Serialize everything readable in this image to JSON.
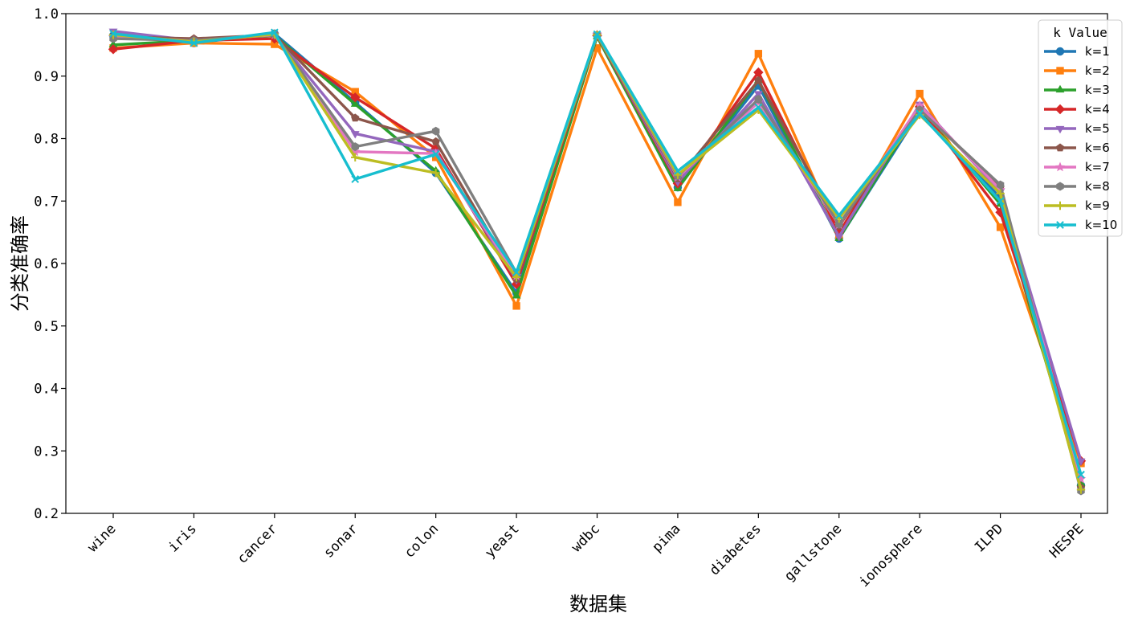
{
  "chart_data": {
    "type": "line",
    "title": "",
    "xlabel": "数据集",
    "ylabel": "分类准确率",
    "ylim": [
      0.2,
      1.0
    ],
    "yticks": [
      0.2,
      0.3,
      0.4,
      0.5,
      0.6,
      0.7,
      0.8,
      0.9,
      1.0
    ],
    "ytick_labels": [
      "0.2",
      "0.3",
      "0.4",
      "0.5",
      "0.6",
      "0.7",
      "0.8",
      "0.9",
      "1.0"
    ],
    "categories": [
      "wine",
      "iris",
      "cancer",
      "sonar",
      "colon",
      "yeast",
      "wdbc",
      "pima",
      "diabetes",
      "gallstone",
      "ionosphere",
      "ILPD",
      "HESPE"
    ],
    "grid": false,
    "legend": {
      "title": "k Value",
      "placement": "top-right"
    },
    "series": [
      {
        "name": "k=1",
        "color": "#1f77b4",
        "marker": "circle",
        "values": [
          0.965,
          0.953,
          0.968,
          0.858,
          0.745,
          0.553,
          0.965,
          0.722,
          0.885,
          0.64,
          0.843,
          0.705,
          0.245
        ]
      },
      {
        "name": "k=2",
        "color": "#ff7f0e",
        "marker": "square",
        "values": [
          0.945,
          0.953,
          0.951,
          0.875,
          0.77,
          0.532,
          0.945,
          0.698,
          0.936,
          0.645,
          0.872,
          0.658,
          0.28
        ]
      },
      {
        "name": "k=3",
        "color": "#2ca02c",
        "marker": "triangle-up",
        "values": [
          0.95,
          0.957,
          0.965,
          0.855,
          0.748,
          0.548,
          0.963,
          0.72,
          0.893,
          0.64,
          0.848,
          0.695,
          0.248
        ]
      },
      {
        "name": "k=4",
        "color": "#d62728",
        "marker": "diamond",
        "values": [
          0.943,
          0.957,
          0.96,
          0.866,
          0.784,
          0.567,
          0.965,
          0.728,
          0.906,
          0.65,
          0.851,
          0.682,
          0.284
        ]
      },
      {
        "name": "k=5",
        "color": "#9467bd",
        "marker": "triangle-down",
        "values": [
          0.972,
          0.957,
          0.966,
          0.808,
          0.779,
          0.574,
          0.966,
          0.731,
          0.872,
          0.643,
          0.855,
          0.715,
          0.284
        ]
      },
      {
        "name": "k=6",
        "color": "#8c564b",
        "marker": "pentagon",
        "values": [
          0.963,
          0.96,
          0.966,
          0.833,
          0.795,
          0.575,
          0.965,
          0.736,
          0.893,
          0.66,
          0.848,
          0.722,
          0.241
        ]
      },
      {
        "name": "k=7",
        "color": "#e377c2",
        "marker": "star",
        "values": [
          0.962,
          0.957,
          0.966,
          0.779,
          0.776,
          0.58,
          0.966,
          0.738,
          0.858,
          0.662,
          0.853,
          0.718,
          0.255
        ]
      },
      {
        "name": "k=8",
        "color": "#7f7f7f",
        "marker": "hexagon",
        "values": [
          0.96,
          0.957,
          0.967,
          0.787,
          0.812,
          0.585,
          0.966,
          0.74,
          0.863,
          0.663,
          0.846,
          0.726,
          0.236
        ]
      },
      {
        "name": "k=9",
        "color": "#bcbd22",
        "marker": "plus",
        "values": [
          0.966,
          0.955,
          0.967,
          0.77,
          0.745,
          0.578,
          0.966,
          0.742,
          0.846,
          0.672,
          0.838,
          0.712,
          0.238
        ]
      },
      {
        "name": "k=10",
        "color": "#17becf",
        "marker": "x",
        "values": [
          0.968,
          0.953,
          0.97,
          0.735,
          0.775,
          0.586,
          0.967,
          0.748,
          0.85,
          0.677,
          0.84,
          0.7,
          0.262
        ]
      }
    ]
  }
}
